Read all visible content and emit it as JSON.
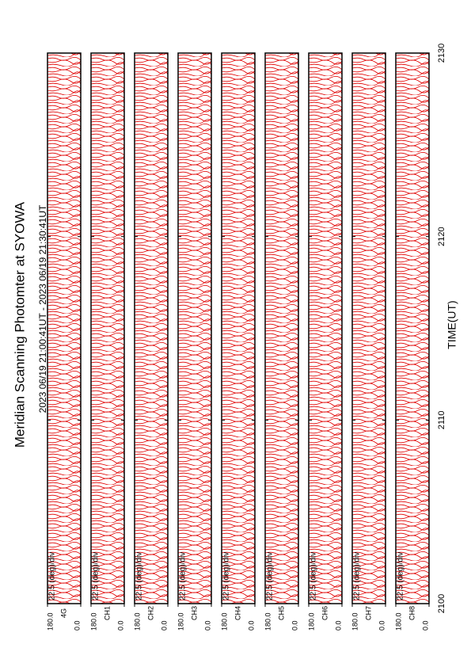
{
  "chart_data": {
    "type": "multi-panel-line",
    "title": "Meridian Scanning Photomter at SYOWA",
    "subtitle": "2023 06/19 21:00:41UT - 2023 06/19 21:30:41UT",
    "xlabel": "TIME(UT)",
    "xlim": [
      2100,
      2130
    ],
    "xticks": [
      2100,
      2110,
      2120,
      2130
    ],
    "scale_label": "22.5 (deg)/div",
    "ylim": [
      0,
      180
    ],
    "yticks": [
      {
        "value": 180,
        "label": "180.0"
      },
      {
        "value": 0,
        "label": "0.0"
      }
    ],
    "color": "#e00000",
    "panels": [
      "4G",
      "CH1",
      "CH2",
      "CH3",
      "CH4",
      "CH5",
      "CH6",
      "CH7",
      "CH8"
    ]
  }
}
